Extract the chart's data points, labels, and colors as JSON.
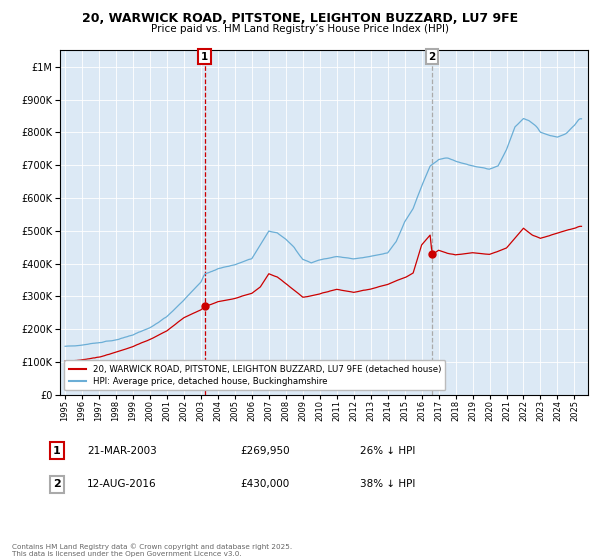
{
  "title1": "20, WARWICK ROAD, PITSTONE, LEIGHTON BUZZARD, LU7 9FE",
  "title2": "Price paid vs. HM Land Registry’s House Price Index (HPI)",
  "legend1": "20, WARWICK ROAD, PITSTONE, LEIGHTON BUZZARD, LU7 9FE (detached house)",
  "legend2": "HPI: Average price, detached house, Buckinghamshire",
  "annotation1_label": "1",
  "annotation1_date": "21-MAR-2003",
  "annotation1_price": "£269,950",
  "annotation1_hpi": "26% ↓ HPI",
  "annotation2_label": "2",
  "annotation2_date": "12-AUG-2016",
  "annotation2_price": "£430,000",
  "annotation2_hpi": "38% ↓ HPI",
  "sale1_year": 2003.22,
  "sale1_price": 269950,
  "sale2_year": 2016.62,
  "sale2_price": 430000,
  "hpi_color": "#6baed6",
  "sale_color": "#cc0000",
  "bg_color": "#dce9f5",
  "plot_bg": "#ffffff",
  "vline1_color": "#cc0000",
  "vline2_color": "#aaaaaa",
  "footer": "Contains HM Land Registry data © Crown copyright and database right 2025.\nThis data is licensed under the Open Government Licence v3.0.",
  "ylim": [
    0,
    1050000
  ],
  "xlim_start": 1994.7,
  "xlim_end": 2025.8
}
